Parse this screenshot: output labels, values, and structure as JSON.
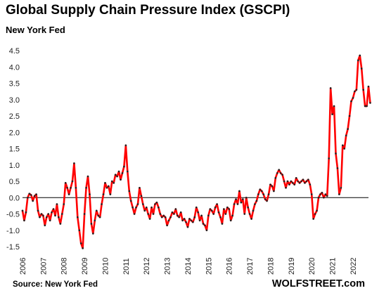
{
  "header": {
    "title": "Global Supply Chain Pressure Index (GSCPI)",
    "subtitle": "New York Fed"
  },
  "footer": {
    "source": "Source: New York Fed",
    "brand": "WOLFSTREET.com"
  },
  "chart_data": {
    "type": "line",
    "title": "Global Supply Chain Pressure Index (GSCPI)",
    "subtitle": "New York Fed",
    "xlabel": "",
    "ylabel": "",
    "ylim": [
      -1.5,
      4.5
    ],
    "xlim": [
      2006,
      2022.75
    ],
    "y_ticks": [
      "4.5",
      "4.0",
      "3.5",
      "3.0",
      "2.5",
      "2.0",
      "1.5",
      "1.0",
      "0.5",
      "0.0",
      "-0.5",
      "-1.0",
      "-1.5"
    ],
    "x_ticks": [
      "2006",
      "2007",
      "2008",
      "2009",
      "2010",
      "2011",
      "2012",
      "2013",
      "2014",
      "2015",
      "2016",
      "2017",
      "2018",
      "2019",
      "2020",
      "2021",
      "2022"
    ],
    "grid": false,
    "zero_line": true,
    "line_color": "#ff0000",
    "marker_color": "#222222",
    "series": [
      {
        "x_start": 2006.0,
        "x_step": 0.0833333,
        "values": [
          -0.4,
          -0.7,
          -0.45,
          0.0,
          0.12,
          0.08,
          -0.1,
          0.05,
          0.1,
          -0.4,
          -0.6,
          -0.5,
          -0.55,
          -0.85,
          -0.6,
          -0.5,
          -0.7,
          -0.45,
          -0.35,
          -0.55,
          -0.2,
          -0.6,
          -0.8,
          -0.5,
          -0.2,
          0.45,
          0.3,
          0.1,
          0.3,
          0.5,
          1.05,
          0.3,
          -0.6,
          -1.0,
          -1.4,
          -1.55,
          -0.5,
          0.3,
          0.65,
          0.1,
          -0.8,
          -1.1,
          -0.7,
          -0.4,
          -0.55,
          -0.6,
          -0.2,
          0.1,
          0.45,
          0.3,
          0.35,
          0.1,
          0.5,
          0.45,
          0.7,
          0.65,
          0.8,
          0.55,
          0.75,
          0.95,
          1.6,
          0.8,
          0.2,
          -0.1,
          -0.3,
          -0.5,
          -0.3,
          -0.2,
          0.3,
          0.05,
          -0.2,
          -0.4,
          -0.3,
          -0.5,
          -0.65,
          -0.3,
          -0.5,
          -0.2,
          -0.15,
          -0.3,
          -0.5,
          -0.6,
          -0.55,
          -0.6,
          -0.85,
          -0.7,
          -0.6,
          -0.45,
          -0.5,
          -0.35,
          -0.55,
          -0.6,
          -0.45,
          -0.7,
          -0.65,
          -0.75,
          -0.9,
          -0.65,
          -0.7,
          -0.75,
          -0.6,
          -0.3,
          -0.45,
          -0.7,
          -0.55,
          -0.8,
          -0.85,
          -1.0,
          -0.55,
          -0.35,
          -0.4,
          -0.5,
          -0.3,
          -0.2,
          -0.45,
          -0.6,
          -0.8,
          -0.35,
          -0.5,
          -0.3,
          -0.35,
          -0.7,
          -0.55,
          -0.2,
          -0.05,
          -0.2,
          0.2,
          -0.15,
          -0.05,
          -0.5,
          0.0,
          -0.3,
          -0.5,
          -0.65,
          -0.4,
          -0.2,
          -0.1,
          0.1,
          0.25,
          0.2,
          0.1,
          -0.05,
          -0.1,
          0.1,
          0.4,
          0.35,
          0.2,
          0.6,
          0.75,
          0.85,
          0.75,
          0.7,
          0.5,
          0.3,
          0.5,
          0.4,
          0.5,
          0.45,
          0.4,
          0.6,
          0.5,
          0.45,
          0.5,
          0.55,
          0.45,
          0.5,
          0.55,
          0.4,
          0.1,
          -0.65,
          -0.5,
          -0.4,
          0.0,
          0.1,
          0.15,
          0.0,
          0.1,
          0.05,
          1.2,
          3.35,
          2.55,
          2.8,
          1.35,
          0.9,
          0.1,
          0.3,
          1.6,
          1.5,
          1.9,
          2.1,
          2.5,
          2.95,
          3.05,
          3.25,
          3.3,
          4.2,
          4.35,
          3.95,
          3.3,
          2.8,
          2.8,
          3.4,
          2.9
        ]
      }
    ]
  }
}
